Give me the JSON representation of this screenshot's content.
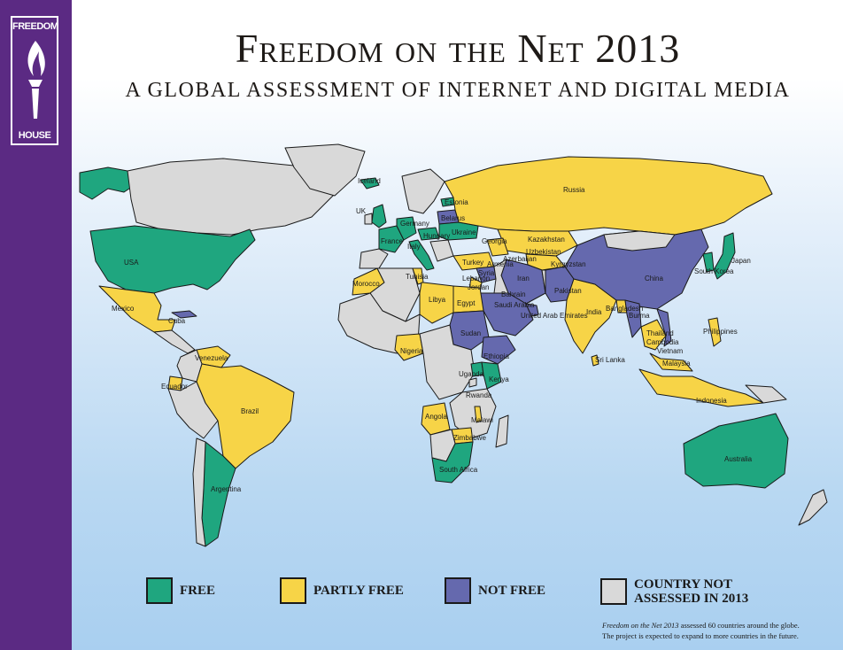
{
  "header": {
    "title": "Freedom on the Net 2013",
    "subtitle": "A GLOBAL ASSESSMENT OF INTERNET AND DIGITAL MEDIA"
  },
  "logo": {
    "line1": "FREEDOM",
    "line2": "HOUSE",
    "icon": "torch-icon"
  },
  "colors": {
    "free": "#1fa67f",
    "partly_free": "#f7d447",
    "not_free": "#6569ae",
    "not_assessed": "#d9d9d9",
    "brand_purple": "#5b2a83"
  },
  "map": {
    "labels": {
      "iceland": "Iceland",
      "uk": "UK",
      "france": "France",
      "germany": "Germany",
      "estonia": "Estonia",
      "belarus": "Belarus",
      "ukraine": "Ukraine",
      "hungary": "Hungary",
      "italy": "Italy",
      "russia": "Russia",
      "georgia": "Georgia",
      "kazakhstan": "Kazakhstan",
      "uzbekistan": "Uzbekistan",
      "azerbaijan": "Azerbaijan",
      "armenia": "Armenia",
      "kyrgyzstan": "Kyrgyzstan",
      "turkey": "Turkey",
      "syria": "Syria",
      "lebanon": "Lebanon",
      "jordan": "Jordan",
      "iran": "Iran",
      "bahrain": "Bahrain",
      "saudi_arabia": "Saudi Arabia",
      "uae": "United Arab Emirates",
      "pakistan": "Pakistan",
      "china": "China",
      "south_korea": "South Korea",
      "japan": "Japan",
      "india": "India",
      "bangladesh": "Bangladesh",
      "burma": "Burma",
      "thailand": "Thailand",
      "cambodia": "Cambodia",
      "vietnam": "Vietnam",
      "philippines": "Philippines",
      "malaysia": "Malaysia",
      "sri_lanka": "Sri Lanka",
      "indonesia": "Indonesia",
      "australia": "Australia",
      "usa": "USA",
      "mexico": "Mexico",
      "cuba": "Cuba",
      "venezuela": "Venezuela",
      "ecuador": "Ecuador",
      "brazil": "Brazil",
      "argentina": "Argentina",
      "morocco": "Morocco",
      "tunisia": "Tunisia",
      "libya": "Libya",
      "egypt": "Egypt",
      "sudan": "Sudan",
      "ethiopia": "Ethiopia",
      "nigeria": "Nigeria",
      "uganda": "Uganda",
      "kenya": "Kenya",
      "rwanda": "Rwanda",
      "angola": "Angola",
      "malawi": "Malawi",
      "zimbabwe": "Zimbabwe",
      "south_africa": "South Africa"
    }
  },
  "legend": {
    "free": "FREE",
    "partly_free": "PARTLY FREE",
    "not_free": "NOT FREE",
    "not_assessed_line1": "COUNTRY NOT",
    "not_assessed_line2": "ASSESSED IN 2013"
  },
  "footnote": {
    "title_italic": "Freedom on the Net 2013",
    "line1_rest": " assessed 60 countries around the globe.",
    "line2": "The project is expected to expand to more countries in the future."
  }
}
